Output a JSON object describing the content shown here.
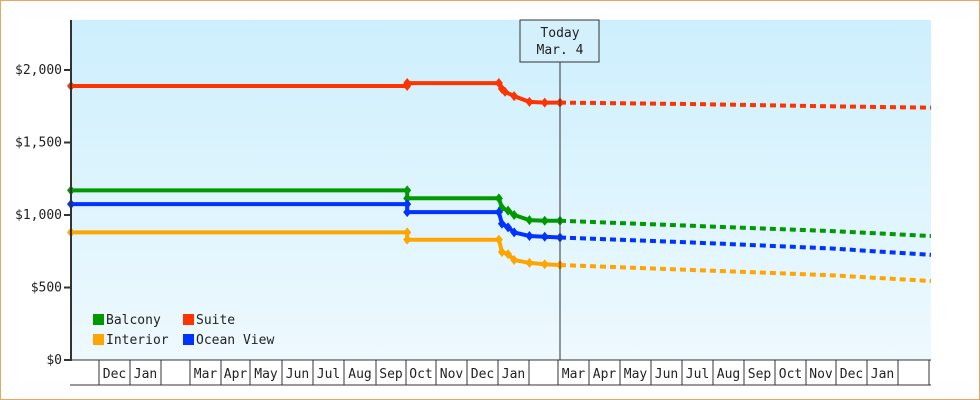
{
  "chart_data": {
    "type": "line",
    "title": "",
    "xlabel": "",
    "ylabel": "",
    "ylim": [
      0,
      2300
    ],
    "y_ticks": [
      {
        "value": 0,
        "label": "$0"
      },
      {
        "value": 500,
        "label": "$500"
      },
      {
        "value": 1000,
        "label": "$1,000"
      },
      {
        "value": 1500,
        "label": "$1,500"
      },
      {
        "value": 2000,
        "label": "$2,000"
      }
    ],
    "x_month_labels": [
      "",
      "Dec",
      "Jan",
      "",
      "Mar",
      "Apr",
      "May",
      "Jun",
      "Jul",
      "Aug",
      "Sep",
      "Oct",
      "Nov",
      "Dec",
      "Jan",
      "",
      "Mar",
      "Apr",
      "May",
      "Jun",
      "Jul",
      "Aug",
      "Sep",
      "Oct",
      "Nov",
      "Dec",
      "Jan",
      ""
    ],
    "today_marker": {
      "line1": "Today",
      "line2": "Mar. 4"
    },
    "grid": false,
    "legend_position": "bottom-left inside plot",
    "series": [
      {
        "name": "Suite",
        "color": "#ff3300",
        "historical": [
          [
            0,
            1890
          ],
          [
            11,
            1890
          ],
          [
            11,
            1910
          ],
          [
            14,
            1910
          ],
          [
            14.1,
            1870
          ],
          [
            14.2,
            1850
          ],
          [
            14.5,
            1820
          ],
          [
            15,
            1780
          ],
          [
            15.5,
            1775
          ],
          [
            16,
            1775
          ]
        ],
        "forecast": [
          [
            16,
            1775
          ],
          [
            20,
            1765
          ],
          [
            24,
            1750
          ],
          [
            27,
            1740
          ]
        ]
      },
      {
        "name": "Balcony",
        "color": "#009900",
        "historical": [
          [
            0,
            1170
          ],
          [
            11,
            1170
          ],
          [
            11,
            1115
          ],
          [
            14,
            1115
          ],
          [
            14.1,
            1050
          ],
          [
            14.3,
            1030
          ],
          [
            14.5,
            1000
          ],
          [
            15,
            965
          ],
          [
            15.5,
            960
          ],
          [
            16,
            960
          ]
        ],
        "forecast": [
          [
            16,
            960
          ],
          [
            20,
            925
          ],
          [
            24,
            890
          ],
          [
            27,
            855
          ]
        ]
      },
      {
        "name": "Ocean View",
        "color": "#0033ff",
        "historical": [
          [
            0,
            1075
          ],
          [
            11,
            1075
          ],
          [
            11,
            1020
          ],
          [
            14,
            1020
          ],
          [
            14.1,
            940
          ],
          [
            14.3,
            915
          ],
          [
            14.5,
            880
          ],
          [
            15,
            855
          ],
          [
            15.5,
            850
          ],
          [
            16,
            845
          ]
        ],
        "forecast": [
          [
            16,
            845
          ],
          [
            20,
            810
          ],
          [
            24,
            770
          ],
          [
            27,
            725
          ]
        ]
      },
      {
        "name": "Interior",
        "color": "#ffa500",
        "historical": [
          [
            0,
            880
          ],
          [
            11,
            880
          ],
          [
            11,
            830
          ],
          [
            14,
            830
          ],
          [
            14.1,
            745
          ],
          [
            14.3,
            730
          ],
          [
            14.5,
            690
          ],
          [
            15,
            670
          ],
          [
            15.5,
            660
          ],
          [
            16,
            655
          ]
        ],
        "forecast": [
          [
            16,
            655
          ],
          [
            20,
            620
          ],
          [
            24,
            585
          ],
          [
            27,
            545
          ]
        ]
      }
    ],
    "legend": [
      {
        "label": "Balcony",
        "color": "#009900"
      },
      {
        "label": "Suite",
        "color": "#ff3300"
      },
      {
        "label": "Interior",
        "color": "#ffa500"
      },
      {
        "label": "Ocean View",
        "color": "#0033ff"
      }
    ]
  }
}
